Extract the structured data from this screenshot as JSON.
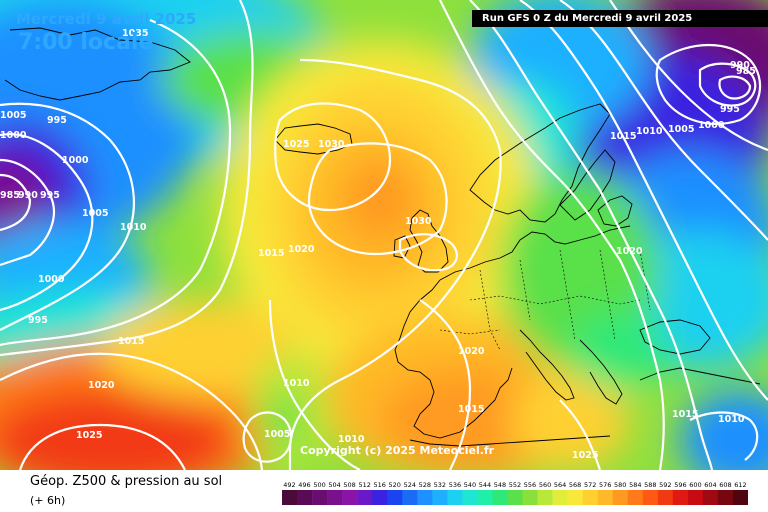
{
  "header": {
    "date_title": "Mercredi 9 avril 2025",
    "local_time": "7:00 locale",
    "run_info": "Run GFS 0 Z du Mercredi 9 avril 2025"
  },
  "map": {
    "copyright": "Copyright (c) 2025 Meteociel.fr",
    "isobar_labels": [
      "1000",
      "995",
      "990",
      "985",
      "1005",
      "1010",
      "1015",
      "1020",
      "1025",
      "1030",
      "1000",
      "995",
      "1005",
      "1010",
      "1015",
      "1020",
      "1025"
    ],
    "extra_labels": [
      "1035",
      "1030",
      "1025",
      "1020",
      "1015",
      "1010",
      "1005",
      "1000",
      "995",
      "990"
    ]
  },
  "legend": {
    "title": "Géop. Z500 & pression au sol",
    "subtitle": "(+ 6h)",
    "scale_values": [
      "492",
      "496",
      "500",
      "504",
      "508",
      "512",
      "516",
      "520",
      "524",
      "528",
      "532",
      "536",
      "540",
      "544",
      "548",
      "552",
      "556",
      "560",
      "564",
      "568",
      "572",
      "576",
      "580",
      "584",
      "588",
      "592",
      "596",
      "600",
      "604",
      "608",
      "612"
    ],
    "scale_colors": [
      "#4a0a3a",
      "#5a0b55",
      "#6a0d70",
      "#7b108c",
      "#8a14a8",
      "#6a18c8",
      "#3a22e0",
      "#1a44f0",
      "#1a6cf6",
      "#1e90ff",
      "#1eb0ff",
      "#1ed0f0",
      "#1ee6d2",
      "#1ef0a8",
      "#2ee878",
      "#5ae04a",
      "#8ae03a",
      "#b8e83a",
      "#e0ee3a",
      "#f8e83a",
      "#ffd030",
      "#ffb828",
      "#ff9a20",
      "#ff7a18",
      "#ff5a14",
      "#f23a12",
      "#e01a12",
      "#c80a12",
      "#a00812",
      "#780610",
      "#500410"
    ]
  },
  "colors": {
    "title_blue": "#2ea8ff",
    "isobar": "#ffffff",
    "coast": "#000000"
  }
}
